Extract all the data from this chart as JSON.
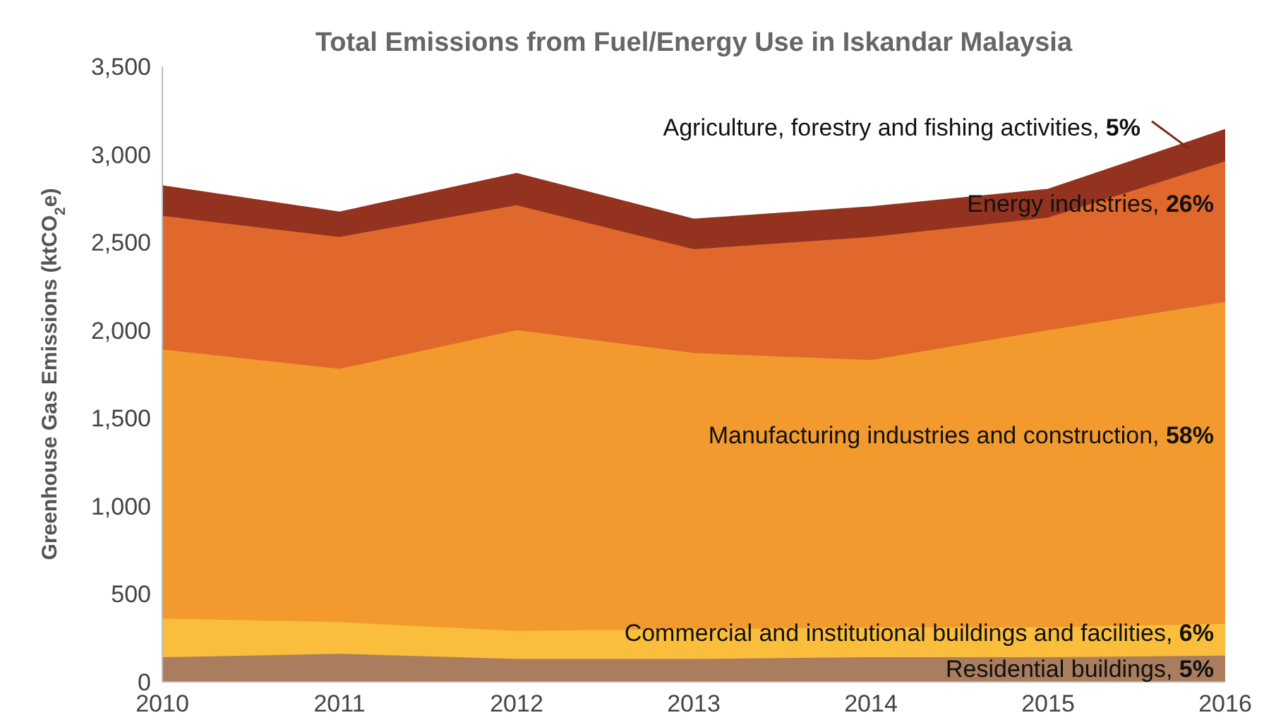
{
  "chart_data": {
    "type": "area",
    "stacked": true,
    "title": "Total Emissions from Fuel/Energy Use in Iskandar Malaysia",
    "ylabel": "Greenhouse Gas Emissions (ktCO$_{2}$e)",
    "x": [
      2010,
      2011,
      2012,
      2013,
      2014,
      2015,
      2016
    ],
    "xlim": [
      2010,
      2016
    ],
    "xticks": [
      2010,
      2011,
      2012,
      2013,
      2014,
      2015,
      2016
    ],
    "ylim": [
      0,
      3500
    ],
    "yticks": [
      0,
      500,
      {
        "value": 1000,
        "label": "1,000"
      },
      {
        "value": 1500,
        "label": "1,500"
      },
      {
        "value": 2000,
        "label": "2,000"
      },
      {
        "value": 2500,
        "label": "2,500"
      },
      {
        "value": 3000,
        "label": "3,000"
      },
      {
        "value": 3500,
        "label": "3,500"
      }
    ],
    "grid": false,
    "legend": false,
    "series": [
      {
        "name": "Residential buildings, 5%",
        "color": "#a97d5d",
        "values": [
          140,
          160,
          130,
          130,
          140,
          140,
          150
        ]
      },
      {
        "name": "Commercial and institutional buildings and facilities, 6%",
        "color": "#fbbd3c",
        "values": [
          220,
          180,
          160,
          170,
          170,
          170,
          180
        ]
      },
      {
        "name": "Manufacturing industries and construction, 58%",
        "color": "#f29a2e",
        "values": [
          1530,
          1440,
          1710,
          1570,
          1520,
          1690,
          1830
        ]
      },
      {
        "name": "Energy industries, 26%",
        "color": "#e0682d",
        "values": [
          760,
          750,
          710,
          590,
          700,
          640,
          800
        ]
      },
      {
        "name": "Agriculture, forestry and fishing activities, 5%",
        "color": "#93331f",
        "values": [
          170,
          140,
          180,
          170,
          170,
          160,
          180
        ]
      }
    ]
  }
}
